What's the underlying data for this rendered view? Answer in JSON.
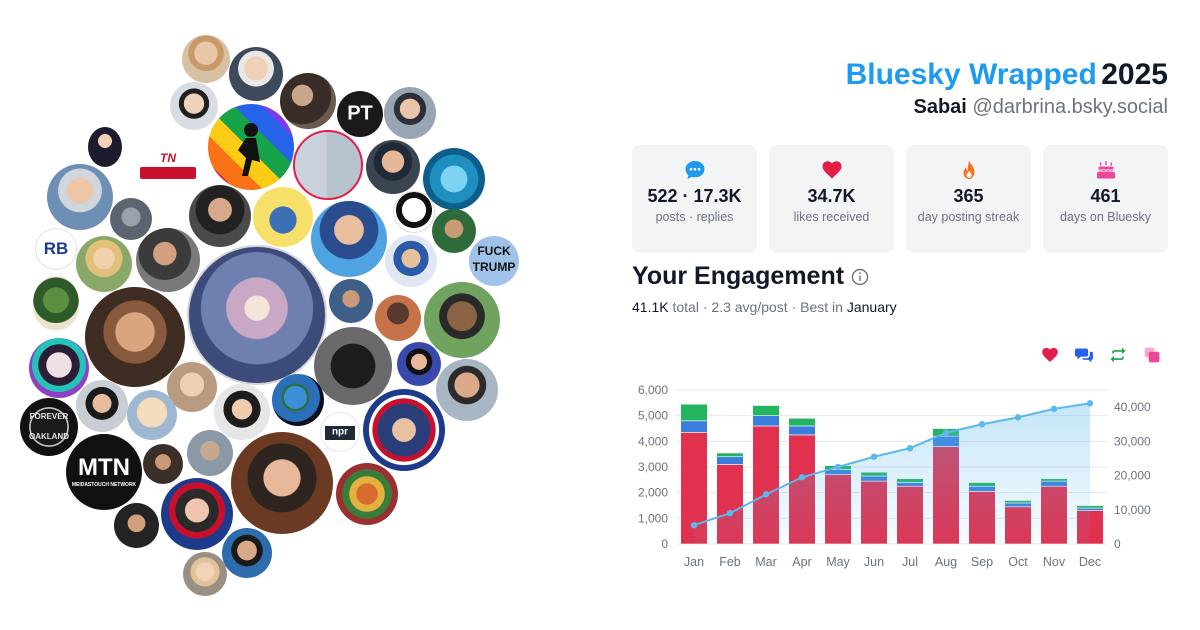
{
  "header": {
    "brand": "Bluesky Wrapped",
    "year": "2025",
    "display_name": "Sabai",
    "handle": "@darbrina.bsky.social"
  },
  "stats": [
    {
      "icon": "chat-bubble-icon",
      "value": "522 · 17.3K",
      "label": "posts · replies",
      "color": "#1d9bf0"
    },
    {
      "icon": "heart-icon",
      "value": "34.7K",
      "label": "likes received",
      "color": "#e11d48"
    },
    {
      "icon": "flame-icon",
      "value": "365",
      "label": "day posting streak",
      "color": "#f97316"
    },
    {
      "icon": "cake-icon",
      "value": "461",
      "label": "days on Bluesky",
      "color": "#ec4899"
    }
  ],
  "engagement": {
    "title": "Your Engagement",
    "total_value": "41.1K",
    "total_word": "total",
    "avg": "2.3 avg/post",
    "best_prefix": "Best in",
    "best_month": "January",
    "legend": [
      {
        "icon": "heart-icon",
        "color": "#e11d48"
      },
      {
        "icon": "reply-icon",
        "color": "#2563eb"
      },
      {
        "icon": "repost-icon",
        "color": "#16a34a"
      },
      {
        "icon": "quote-icon",
        "color": "#ec4899"
      }
    ]
  },
  "bubble_labels": {
    "pt": "PT",
    "tn_holler": "TN HOLLER",
    "mtn": "MTN",
    "mtn_sub": "MEIDASTOUCH NETWORK",
    "npr": "npr",
    "fuck_trump_1": "FUCK",
    "fuck_trump_2": "TRUMP",
    "rb": "RB",
    "forever": "FOREVER",
    "oakland": "OAKLAND"
  },
  "chart_data": {
    "type": "bar",
    "categories": [
      "Jan",
      "Feb",
      "Mar",
      "Apr",
      "May",
      "Jun",
      "Jul",
      "Aug",
      "Sep",
      "Oct",
      "Nov",
      "Dec"
    ],
    "series": [
      {
        "values": [
          4350,
          3100,
          4600,
          4250,
          2700,
          2450,
          2250,
          3800,
          2050,
          1450,
          2250,
          1300
        ],
        "color": "#e0314f"
      },
      {
        "values": [
          450,
          300,
          400,
          350,
          200,
          200,
          150,
          400,
          200,
          150,
          200,
          100
        ],
        "color": "#3b7ddd"
      },
      {
        "values": [
          650,
          150,
          400,
          300,
          150,
          150,
          150,
          300,
          150,
          100,
          100,
          100
        ],
        "color": "#22b45f"
      },
      {
        "values": [
          20,
          20,
          20,
          20,
          20,
          20,
          20,
          20,
          20,
          20,
          20,
          20
        ],
        "color": "#ec4899"
      }
    ],
    "cumulative": {
      "values": [
        5500,
        9000,
        14500,
        19500,
        22500,
        25500,
        28000,
        32500,
        35000,
        37000,
        39500,
        41100
      ],
      "color": "#5bb8ec"
    },
    "y_left": {
      "min": 0,
      "max": 6000,
      "ticks": [
        0,
        1000,
        2000,
        3000,
        4000,
        5000,
        6000
      ],
      "tick_labels": [
        "0",
        "1,000",
        "2,000",
        "3,000",
        "4,000",
        "5,000",
        "6,000"
      ]
    },
    "y_right": {
      "min": 0,
      "max": 45000,
      "ticks": [
        0,
        10000,
        20000,
        30000,
        40000
      ],
      "tick_labels": [
        "0",
        "10,000",
        "20,000",
        "30,000",
        "40,000"
      ]
    },
    "grid": true,
    "legend_position": "top-right"
  }
}
